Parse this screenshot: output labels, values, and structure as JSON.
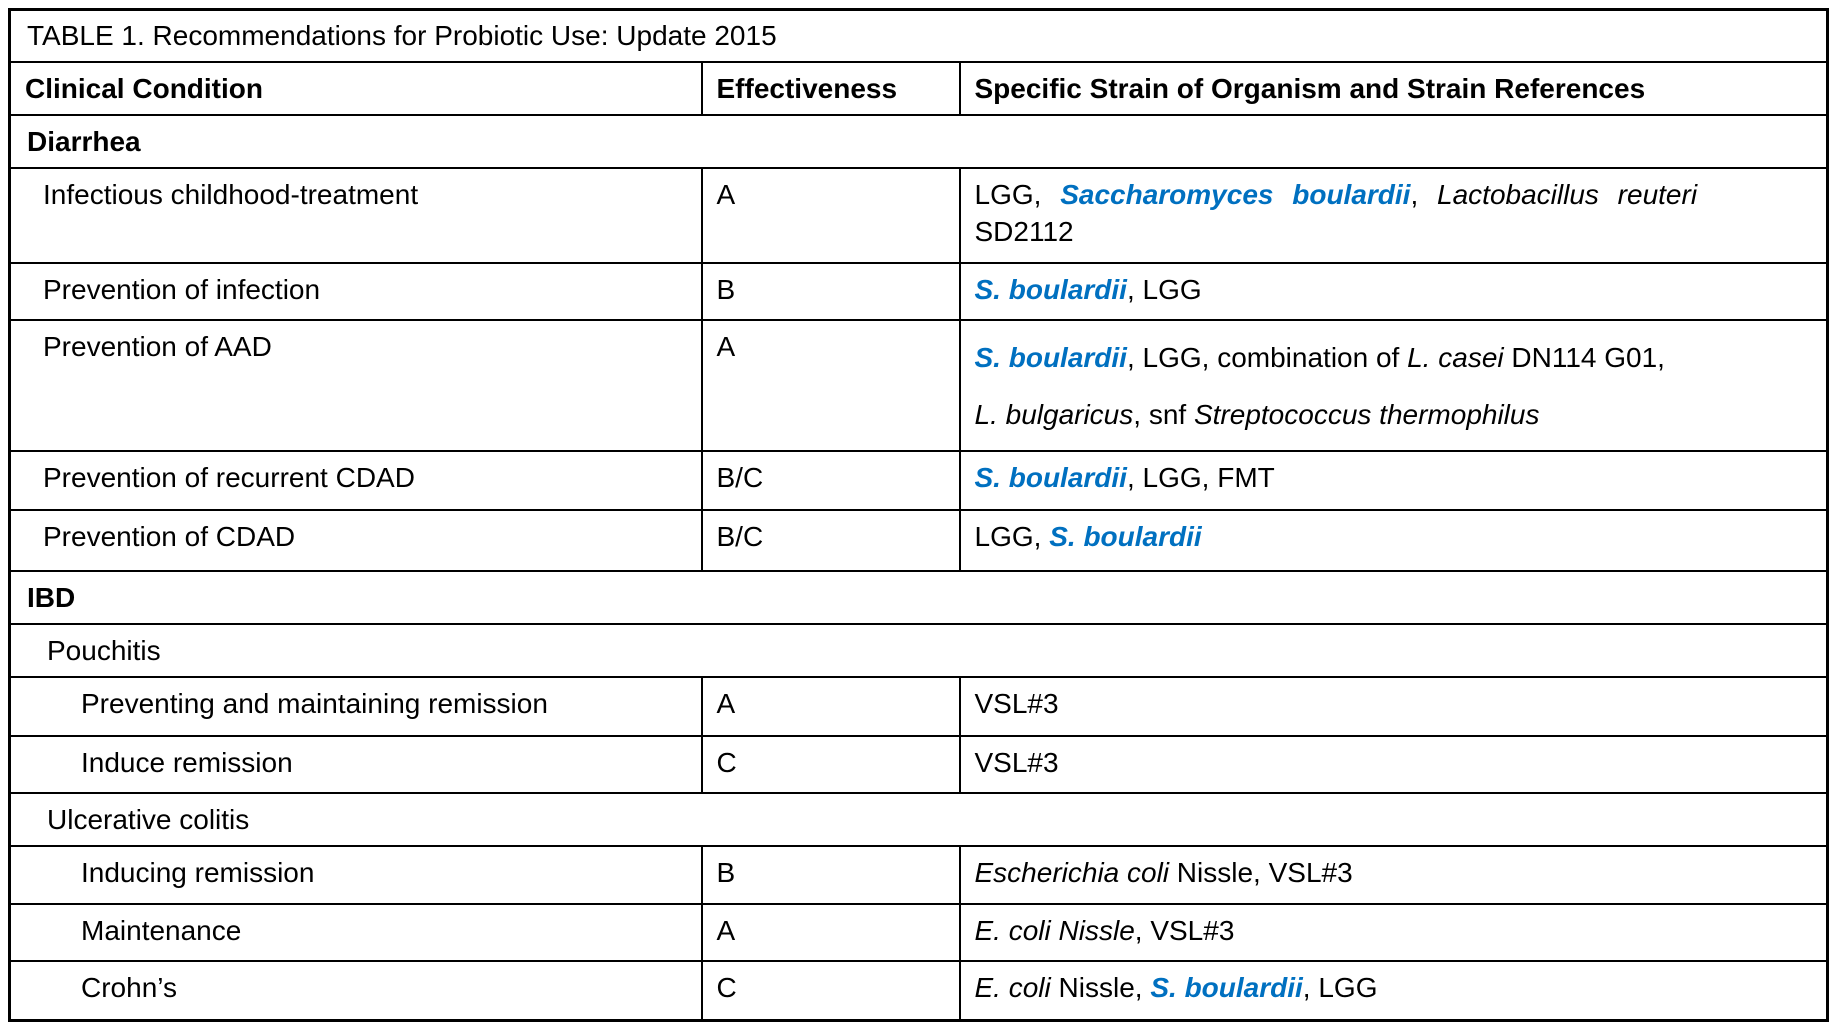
{
  "title": "TABLE 1. Recommendations for Probiotic Use: Update 2015",
  "columns": {
    "condition": "Clinical Condition",
    "effectiveness": "Effectiveness",
    "strains": "Specific Strain of Organism and Strain References"
  },
  "colors": {
    "accent_blue": "#0070C0",
    "ink": "#000000",
    "background": "#ffffff"
  },
  "rows": [
    {
      "type": "section",
      "label": "Diarrhea"
    },
    {
      "type": "data",
      "condition": "Infectious childhood-treatment",
      "effectiveness": "A",
      "strains": [
        {
          "t": "LGG, ",
          "s": "plain"
        },
        {
          "t": "Saccharomyces boulardii",
          "s": "blue"
        },
        {
          "t": ", ",
          "s": "plain"
        },
        {
          "t": "Lactobacillus reuteri",
          "s": "italic"
        },
        {
          "s": "br"
        },
        {
          "t": "SD2112",
          "s": "plain"
        }
      ]
    },
    {
      "type": "data",
      "condition": "Prevention of infection",
      "effectiveness": "B",
      "strains": [
        {
          "t": "S. boulardii",
          "s": "blue"
        },
        {
          "t": ", LGG",
          "s": "plain"
        }
      ]
    },
    {
      "type": "data",
      "condition": "Prevention of AAD",
      "effectiveness": "A",
      "strains": [
        {
          "t": "S. boulardii",
          "s": "blue"
        },
        {
          "t": ", LGG, combination of ",
          "s": "plain"
        },
        {
          "t": "L. casei",
          "s": "italic"
        },
        {
          "t": " DN114 G01,",
          "s": "plain"
        },
        {
          "s": "br"
        },
        {
          "t": "L. bulgaricus",
          "s": "italic"
        },
        {
          "t": ", snf ",
          "s": "plain"
        },
        {
          "t": "Streptococcus thermophilus",
          "s": "italic"
        }
      ]
    },
    {
      "type": "data",
      "condition": "Prevention of recurrent CDAD",
      "effectiveness": "B/C",
      "strains": [
        {
          "t": "S. boulardii",
          "s": "blue"
        },
        {
          "t": ", LGG, FMT",
          "s": "plain"
        }
      ]
    },
    {
      "type": "data",
      "condition": "Prevention of CDAD",
      "effectiveness": "B/C",
      "strains": [
        {
          "t": "LGG, ",
          "s": "plain"
        },
        {
          "t": "S. boulardii",
          "s": "blue"
        }
      ]
    },
    {
      "type": "section",
      "label": "IBD"
    },
    {
      "type": "subsection",
      "label": "Pouchitis"
    },
    {
      "type": "data",
      "condition": "Preventing and maintaining remission",
      "effectiveness": "A",
      "strains": [
        {
          "t": "VSL#3",
          "s": "plain"
        }
      ]
    },
    {
      "type": "data",
      "condition": "Induce remission",
      "effectiveness": "C",
      "strains": [
        {
          "t": "VSL#3",
          "s": "plain"
        }
      ]
    },
    {
      "type": "subsection",
      "label": "Ulcerative colitis"
    },
    {
      "type": "data",
      "condition": "Inducing remission",
      "effectiveness": "B",
      "strains": [
        {
          "t": "Escherichia coli",
          "s": "italic"
        },
        {
          "t": " Nissle, VSL#3",
          "s": "plain"
        }
      ]
    },
    {
      "type": "data",
      "condition": "Maintenance",
      "effectiveness": "A",
      "strains": [
        {
          "t": "E. coli Nissle",
          "s": "italic"
        },
        {
          "t": ", VSL#3",
          "s": "plain"
        }
      ]
    },
    {
      "type": "data",
      "condition": "Crohn’s",
      "effectiveness": "C",
      "strains": [
        {
          "t": "E. coli",
          "s": "italic"
        },
        {
          "t": " Nissle, ",
          "s": "plain"
        },
        {
          "t": "S. boulardii",
          "s": "blue"
        },
        {
          "t": ", LGG",
          "s": "plain"
        }
      ]
    }
  ]
}
